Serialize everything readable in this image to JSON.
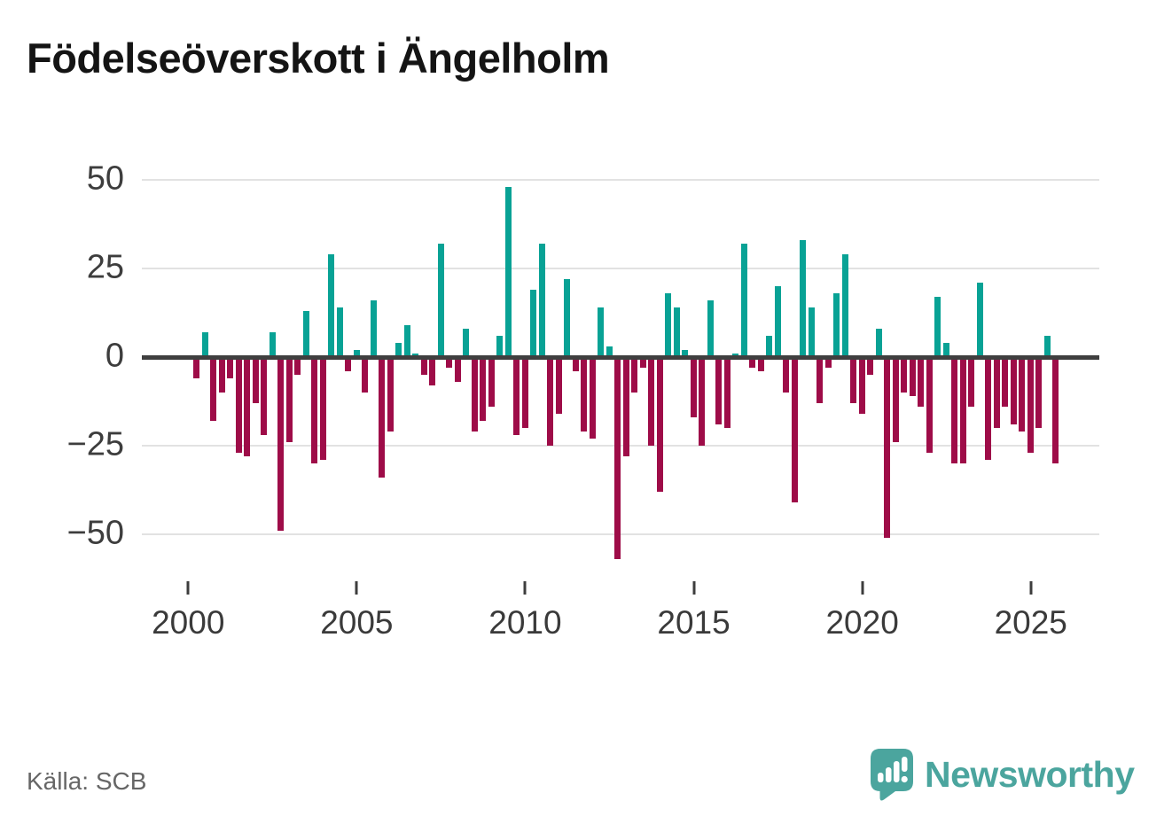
{
  "title": "Födelseöverskott i Ängelholm",
  "source": "Källa: SCB",
  "logo": {
    "text": "Newsworthy",
    "color": "#4ba59e"
  },
  "colors": {
    "positive": "#08a295",
    "negative": "#9e0c48",
    "zero_line": "#3f3f3f",
    "gridline": "#e2e2e2",
    "axis_text": "#3a3a3a"
  },
  "chart_data": {
    "type": "bar",
    "title": "Födelseöverskott i Ängelholm",
    "xlabel": "",
    "ylabel": "",
    "period": "quarterly",
    "start": "2000 Q2",
    "end": "2025 Q4",
    "ylim": [
      -60,
      55
    ],
    "grid": "horizontal",
    "y_ticks": [
      {
        "label": "50",
        "value": 50
      },
      {
        "label": "25",
        "value": 25
      },
      {
        "label": "0",
        "value": 0
      },
      {
        "label": "−25",
        "value": -25
      },
      {
        "label": "−50",
        "value": -50
      }
    ],
    "x_ticks": [
      {
        "label": "2000",
        "year": 2000
      },
      {
        "label": "2005",
        "year": 2005
      },
      {
        "label": "2010",
        "year": 2010
      },
      {
        "label": "2015",
        "year": 2015
      },
      {
        "label": "2020",
        "year": 2020
      },
      {
        "label": "2025",
        "year": 2025
      }
    ],
    "points": [
      [
        "2000Q2",
        -6
      ],
      [
        "2000Q3",
        7
      ],
      [
        "2000Q4",
        -18
      ],
      [
        "2001Q1",
        -10
      ],
      [
        "2001Q2",
        -6
      ],
      [
        "2001Q3",
        -27
      ],
      [
        "2001Q4",
        -28
      ],
      [
        "2002Q1",
        -13
      ],
      [
        "2002Q2",
        -22
      ],
      [
        "2002Q3",
        7
      ],
      [
        "2002Q4",
        -49
      ],
      [
        "2003Q1",
        -24
      ],
      [
        "2003Q2",
        -5
      ],
      [
        "2003Q3",
        13
      ],
      [
        "2003Q4",
        -30
      ],
      [
        "2004Q1",
        -29
      ],
      [
        "2004Q2",
        29
      ],
      [
        "2004Q3",
        14
      ],
      [
        "2004Q4",
        -4
      ],
      [
        "2005Q1",
        2
      ],
      [
        "2005Q2",
        -10
      ],
      [
        "2005Q3",
        16
      ],
      [
        "2005Q4",
        -34
      ],
      [
        "2006Q1",
        -21
      ],
      [
        "2006Q2",
        4
      ],
      [
        "2006Q3",
        9
      ],
      [
        "2006Q4",
        1
      ],
      [
        "2007Q1",
        -5
      ],
      [
        "2007Q2",
        -8
      ],
      [
        "2007Q3",
        32
      ],
      [
        "2007Q4",
        -3
      ],
      [
        "2008Q1",
        -7
      ],
      [
        "2008Q2",
        8
      ],
      [
        "2008Q3",
        -21
      ],
      [
        "2008Q4",
        -18
      ],
      [
        "2009Q1",
        -14
      ],
      [
        "2009Q2",
        6
      ],
      [
        "2009Q3",
        48
      ],
      [
        "2009Q4",
        -22
      ],
      [
        "2010Q1",
        -20
      ],
      [
        "2010Q2",
        19
      ],
      [
        "2010Q3",
        32
      ],
      [
        "2010Q4",
        -25
      ],
      [
        "2011Q1",
        -16
      ],
      [
        "2011Q2",
        22
      ],
      [
        "2011Q3",
        -4
      ],
      [
        "2011Q4",
        -21
      ],
      [
        "2012Q1",
        -23
      ],
      [
        "2012Q2",
        14
      ],
      [
        "2012Q3",
        3
      ],
      [
        "2012Q4",
        -57
      ],
      [
        "2013Q1",
        -28
      ],
      [
        "2013Q2",
        -10
      ],
      [
        "2013Q3",
        -3
      ],
      [
        "2013Q4",
        -25
      ],
      [
        "2014Q1",
        -38
      ],
      [
        "2014Q2",
        18
      ],
      [
        "2014Q3",
        14
      ],
      [
        "2014Q4",
        2
      ],
      [
        "2015Q1",
        -17
      ],
      [
        "2015Q2",
        -25
      ],
      [
        "2015Q3",
        16
      ],
      [
        "2015Q4",
        -19
      ],
      [
        "2016Q1",
        -20
      ],
      [
        "2016Q2",
        1
      ],
      [
        "2016Q3",
        32
      ],
      [
        "2016Q4",
        -3
      ],
      [
        "2017Q1",
        -4
      ],
      [
        "2017Q2",
        6
      ],
      [
        "2017Q3",
        20
      ],
      [
        "2017Q4",
        -10
      ],
      [
        "2018Q1",
        -41
      ],
      [
        "2018Q2",
        33
      ],
      [
        "2018Q3",
        14
      ],
      [
        "2018Q4",
        -13
      ],
      [
        "2019Q1",
        -3
      ],
      [
        "2019Q2",
        18
      ],
      [
        "2019Q3",
        29
      ],
      [
        "2019Q4",
        -13
      ],
      [
        "2020Q1",
        -16
      ],
      [
        "2020Q2",
        -5
      ],
      [
        "2020Q3",
        8
      ],
      [
        "2020Q4",
        -51
      ],
      [
        "2021Q1",
        -24
      ],
      [
        "2021Q2",
        -10
      ],
      [
        "2021Q3",
        -11
      ],
      [
        "2021Q4",
        -14
      ],
      [
        "2022Q1",
        -27
      ],
      [
        "2022Q2",
        17
      ],
      [
        "2022Q3",
        4
      ],
      [
        "2022Q4",
        -30
      ],
      [
        "2023Q1",
        -30
      ],
      [
        "2023Q2",
        -14
      ],
      [
        "2023Q3",
        21
      ],
      [
        "2023Q4",
        -29
      ],
      [
        "2024Q1",
        -20
      ],
      [
        "2024Q2",
        -14
      ],
      [
        "2024Q3",
        -19
      ],
      [
        "2024Q4",
        -21
      ],
      [
        "2025Q1",
        -27
      ],
      [
        "2025Q2",
        -20
      ],
      [
        "2025Q3",
        6
      ],
      [
        "2025Q4",
        -30
      ]
    ]
  }
}
